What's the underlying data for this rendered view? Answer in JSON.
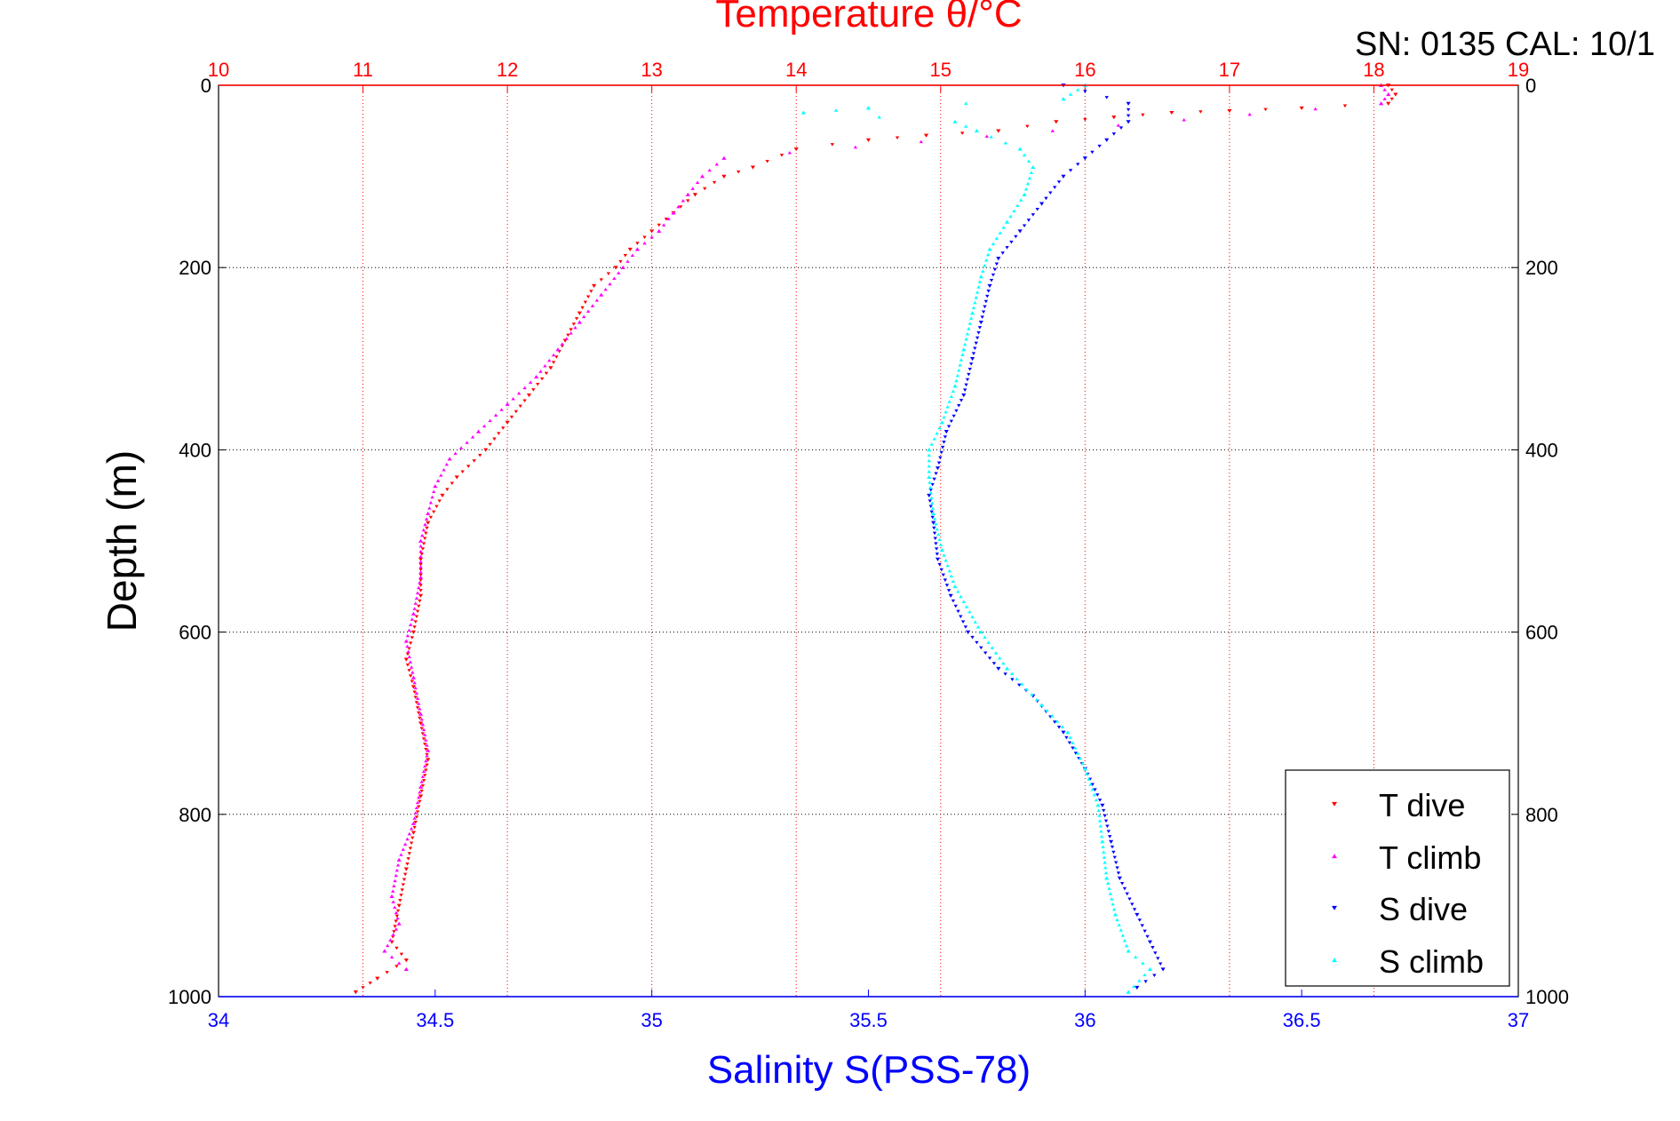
{
  "chart_data": {
    "type": "scatter",
    "title": "Temperature θ/°C",
    "annotation": "SN: 0135  CAL: 10/1",
    "ylabel": "Depth (m)",
    "xlabel": "Salinity S(PSS-78)",
    "ylim": [
      0,
      1000
    ],
    "y_reversed": true,
    "y_ticks": [
      0,
      200,
      400,
      600,
      800,
      1000
    ],
    "x_bottom": {
      "label": "Salinity S(PSS-78)",
      "range": [
        34,
        37
      ],
      "ticks": [
        "34",
        "34.5",
        "35",
        "35.5",
        "36",
        "36.5",
        "37"
      ],
      "color": "#0000ff"
    },
    "x_top": {
      "label": "Temperature θ/°C",
      "range": [
        10,
        19
      ],
      "ticks": [
        "10",
        "11",
        "12",
        "13",
        "14",
        "15",
        "16",
        "17",
        "18",
        "19"
      ],
      "color": "#ff0000"
    },
    "grid": true,
    "legend_position": "bottom-right",
    "legend": [
      "T dive",
      "T climb",
      "S dive",
      "S climb"
    ],
    "series": [
      {
        "name": "T dive",
        "axis": "temperature",
        "color": "#ff0000",
        "marker": "triangle-down",
        "points": [
          [
            18.1,
            0
          ],
          [
            18.15,
            10
          ],
          [
            18.1,
            20
          ],
          [
            17.5,
            25
          ],
          [
            17.0,
            28
          ],
          [
            16.6,
            30
          ],
          [
            16.2,
            35
          ],
          [
            15.8,
            40
          ],
          [
            15.4,
            50
          ],
          [
            14.9,
            55
          ],
          [
            14.5,
            60
          ],
          [
            14.0,
            70
          ],
          [
            13.7,
            90
          ],
          [
            13.5,
            100
          ],
          [
            13.3,
            120
          ],
          [
            13.15,
            140
          ],
          [
            13.0,
            160
          ],
          [
            12.85,
            180
          ],
          [
            12.75,
            200
          ],
          [
            12.6,
            220
          ],
          [
            12.5,
            250
          ],
          [
            12.4,
            280
          ],
          [
            12.3,
            310
          ],
          [
            12.15,
            340
          ],
          [
            12.0,
            370
          ],
          [
            11.85,
            400
          ],
          [
            11.65,
            430
          ],
          [
            11.55,
            450
          ],
          [
            11.45,
            480
          ],
          [
            11.4,
            520
          ],
          [
            11.4,
            560
          ],
          [
            11.35,
            600
          ],
          [
            11.3,
            630
          ],
          [
            11.35,
            660
          ],
          [
            11.4,
            700
          ],
          [
            11.45,
            740
          ],
          [
            11.4,
            780
          ],
          [
            11.35,
            820
          ],
          [
            11.3,
            860
          ],
          [
            11.25,
            900
          ],
          [
            11.2,
            940
          ],
          [
            11.3,
            960
          ],
          [
            11.1,
            980
          ],
          [
            10.95,
            995
          ]
        ]
      },
      {
        "name": "T climb",
        "axis": "temperature",
        "color": "#ff00ff",
        "marker": "triangle-up",
        "points": [
          [
            18.05,
            0
          ],
          [
            18.1,
            10
          ],
          [
            18.05,
            20
          ],
          [
            13.5,
            80
          ],
          [
            13.35,
            100
          ],
          [
            13.25,
            120
          ],
          [
            13.15,
            140
          ],
          [
            13.05,
            160
          ],
          [
            12.9,
            180
          ],
          [
            12.8,
            200
          ],
          [
            12.65,
            230
          ],
          [
            12.5,
            260
          ],
          [
            12.35,
            290
          ],
          [
            12.2,
            320
          ],
          [
            12.0,
            350
          ],
          [
            11.8,
            380
          ],
          [
            11.6,
            410
          ],
          [
            11.5,
            440
          ],
          [
            11.45,
            470
          ],
          [
            11.4,
            500
          ],
          [
            11.4,
            540
          ],
          [
            11.35,
            580
          ],
          [
            11.3,
            610
          ],
          [
            11.35,
            650
          ],
          [
            11.4,
            690
          ],
          [
            11.45,
            730
          ],
          [
            11.4,
            770
          ],
          [
            11.35,
            810
          ],
          [
            11.25,
            850
          ],
          [
            11.2,
            890
          ],
          [
            11.25,
            920
          ],
          [
            11.15,
            950
          ],
          [
            11.3,
            970
          ]
        ]
      },
      {
        "name": "S dive",
        "axis": "salinity",
        "color": "#0000ff",
        "marker": "triangle-down",
        "points": [
          [
            35.95,
            0
          ],
          [
            36.1,
            20
          ],
          [
            36.1,
            40
          ],
          [
            36.05,
            60
          ],
          [
            36.0,
            80
          ],
          [
            35.95,
            100
          ],
          [
            35.9,
            130
          ],
          [
            35.85,
            160
          ],
          [
            35.8,
            190
          ],
          [
            35.78,
            220
          ],
          [
            35.76,
            260
          ],
          [
            35.74,
            300
          ],
          [
            35.72,
            340
          ],
          [
            35.68,
            380
          ],
          [
            35.66,
            420
          ],
          [
            35.64,
            450
          ],
          [
            35.65,
            480
          ],
          [
            35.66,
            520
          ],
          [
            35.69,
            560
          ],
          [
            35.73,
            600
          ],
          [
            35.8,
            640
          ],
          [
            35.88,
            670
          ],
          [
            35.95,
            710
          ],
          [
            36.0,
            750
          ],
          [
            36.04,
            790
          ],
          [
            36.06,
            830
          ],
          [
            36.08,
            870
          ],
          [
            36.12,
            910
          ],
          [
            36.15,
            940
          ],
          [
            36.18,
            970
          ],
          [
            36.12,
            990
          ]
        ]
      },
      {
        "name": "S climb",
        "axis": "salinity",
        "color": "#00ffff",
        "marker": "triangle-up",
        "points": [
          [
            36.0,
            0
          ],
          [
            35.95,
            15
          ],
          [
            35.5,
            25
          ],
          [
            35.35,
            30
          ],
          [
            35.7,
            40
          ],
          [
            35.75,
            50
          ],
          [
            35.85,
            70
          ],
          [
            35.88,
            90
          ],
          [
            35.86,
            120
          ],
          [
            35.82,
            150
          ],
          [
            35.78,
            180
          ],
          [
            35.76,
            210
          ],
          [
            35.74,
            250
          ],
          [
            35.72,
            290
          ],
          [
            35.7,
            330
          ],
          [
            35.67,
            370
          ],
          [
            35.64,
            400
          ],
          [
            35.64,
            430
          ],
          [
            35.65,
            470
          ],
          [
            35.67,
            510
          ],
          [
            35.7,
            550
          ],
          [
            35.76,
            600
          ],
          [
            35.82,
            640
          ],
          [
            35.9,
            680
          ],
          [
            35.96,
            710
          ],
          [
            36.0,
            750
          ],
          [
            36.03,
            790
          ],
          [
            36.04,
            830
          ],
          [
            36.05,
            870
          ],
          [
            36.07,
            910
          ],
          [
            36.1,
            950
          ],
          [
            36.15,
            970
          ],
          [
            36.1,
            995
          ]
        ]
      }
    ]
  }
}
